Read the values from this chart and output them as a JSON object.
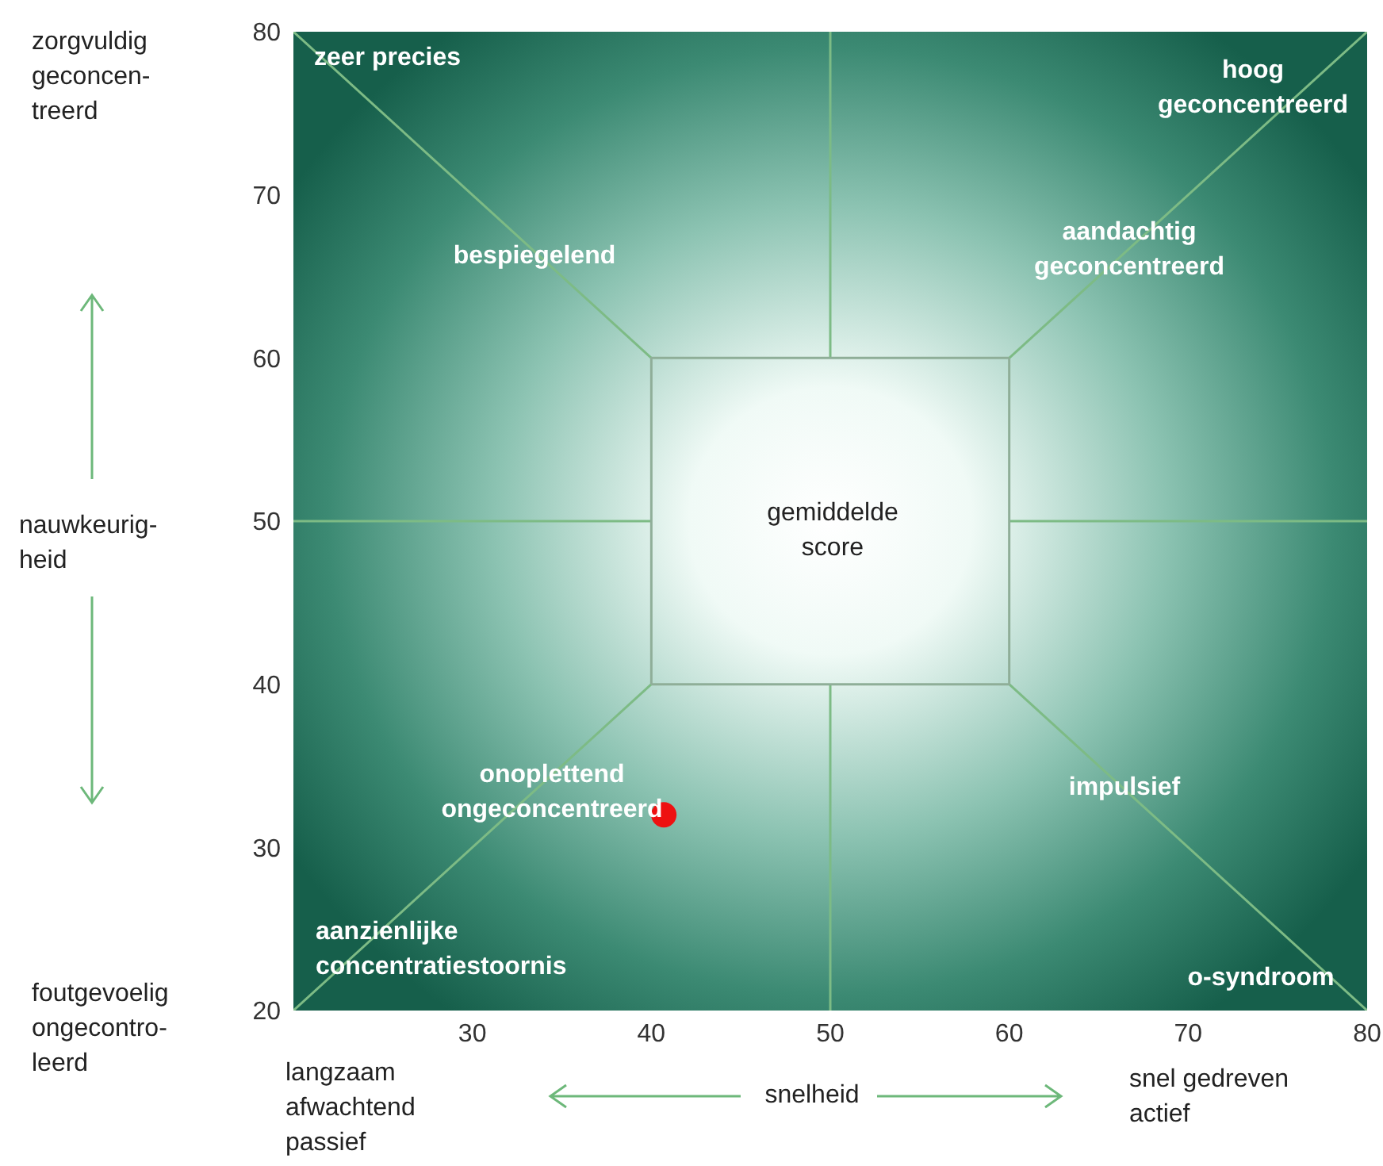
{
  "chart_data": {
    "type": "scatter",
    "xlabel": "snelheid",
    "ylabel": "nauwkeurig-\nheid",
    "xlim": [
      20,
      80
    ],
    "ylim": [
      20,
      80
    ],
    "xticks": [
      30,
      40,
      50,
      60,
      70,
      80
    ],
    "yticks": [
      20,
      30,
      40,
      50,
      60,
      70,
      80
    ],
    "series": [
      {
        "type": "line",
        "color": "#7dbb85",
        "x": [
          20,
          40
        ],
        "values": [
          80,
          60
        ]
      },
      {
        "type": "line",
        "color": "#7dbb85",
        "x": [
          60,
          80
        ],
        "values": [
          60,
          80
        ]
      },
      {
        "type": "line",
        "color": "#7dbb85",
        "x": [
          20,
          40
        ],
        "values": [
          20,
          40
        ]
      },
      {
        "type": "line",
        "color": "#7dbb85",
        "x": [
          60,
          80
        ],
        "values": [
          40,
          20
        ]
      },
      {
        "type": "line",
        "color": "#7dbb85",
        "x": [
          50,
          50
        ],
        "values": [
          60,
          80
        ]
      },
      {
        "type": "line",
        "color": "#7dbb85",
        "x": [
          50,
          50
        ],
        "values": [
          20,
          40
        ]
      },
      {
        "type": "line",
        "color": "#7dbb85",
        "x": [
          20,
          40
        ],
        "values": [
          50,
          50
        ]
      },
      {
        "type": "line",
        "color": "#7dbb85",
        "x": [
          60,
          80
        ],
        "values": [
          50,
          50
        ]
      },
      {
        "type": "line",
        "color": "#8fae98",
        "x": [
          40,
          60,
          60
        ],
        "values": [
          40,
          40,
          60
        ]
      },
      {
        "type": "line",
        "color": "#8fae98",
        "x": [
          40,
          40,
          60
        ],
        "values": [
          40,
          60,
          60
        ]
      },
      {
        "color": "#ee1111",
        "marker": "circle",
        "x": [
          40.7
        ],
        "values": [
          32
        ]
      }
    ],
    "annotations": [
      "zeer precies",
      "hoog\ngeconcentreerd",
      "bespiegelend",
      "aandachtig\ngeconcentreerd",
      "gemiddelde\nscore",
      "onoplettend\nongeconcentreerd",
      "impulsief",
      "aanzienlijke\nconcentratiestoornis",
      "o-syndroom",
      "zorgvuldig\ngeconcen-\ntreerd",
      "foutgevoelig\nongecontro-\nleerd",
      "langzaam\nafwachtend\npassief",
      "snel gedreven\nactief"
    ]
  }
}
